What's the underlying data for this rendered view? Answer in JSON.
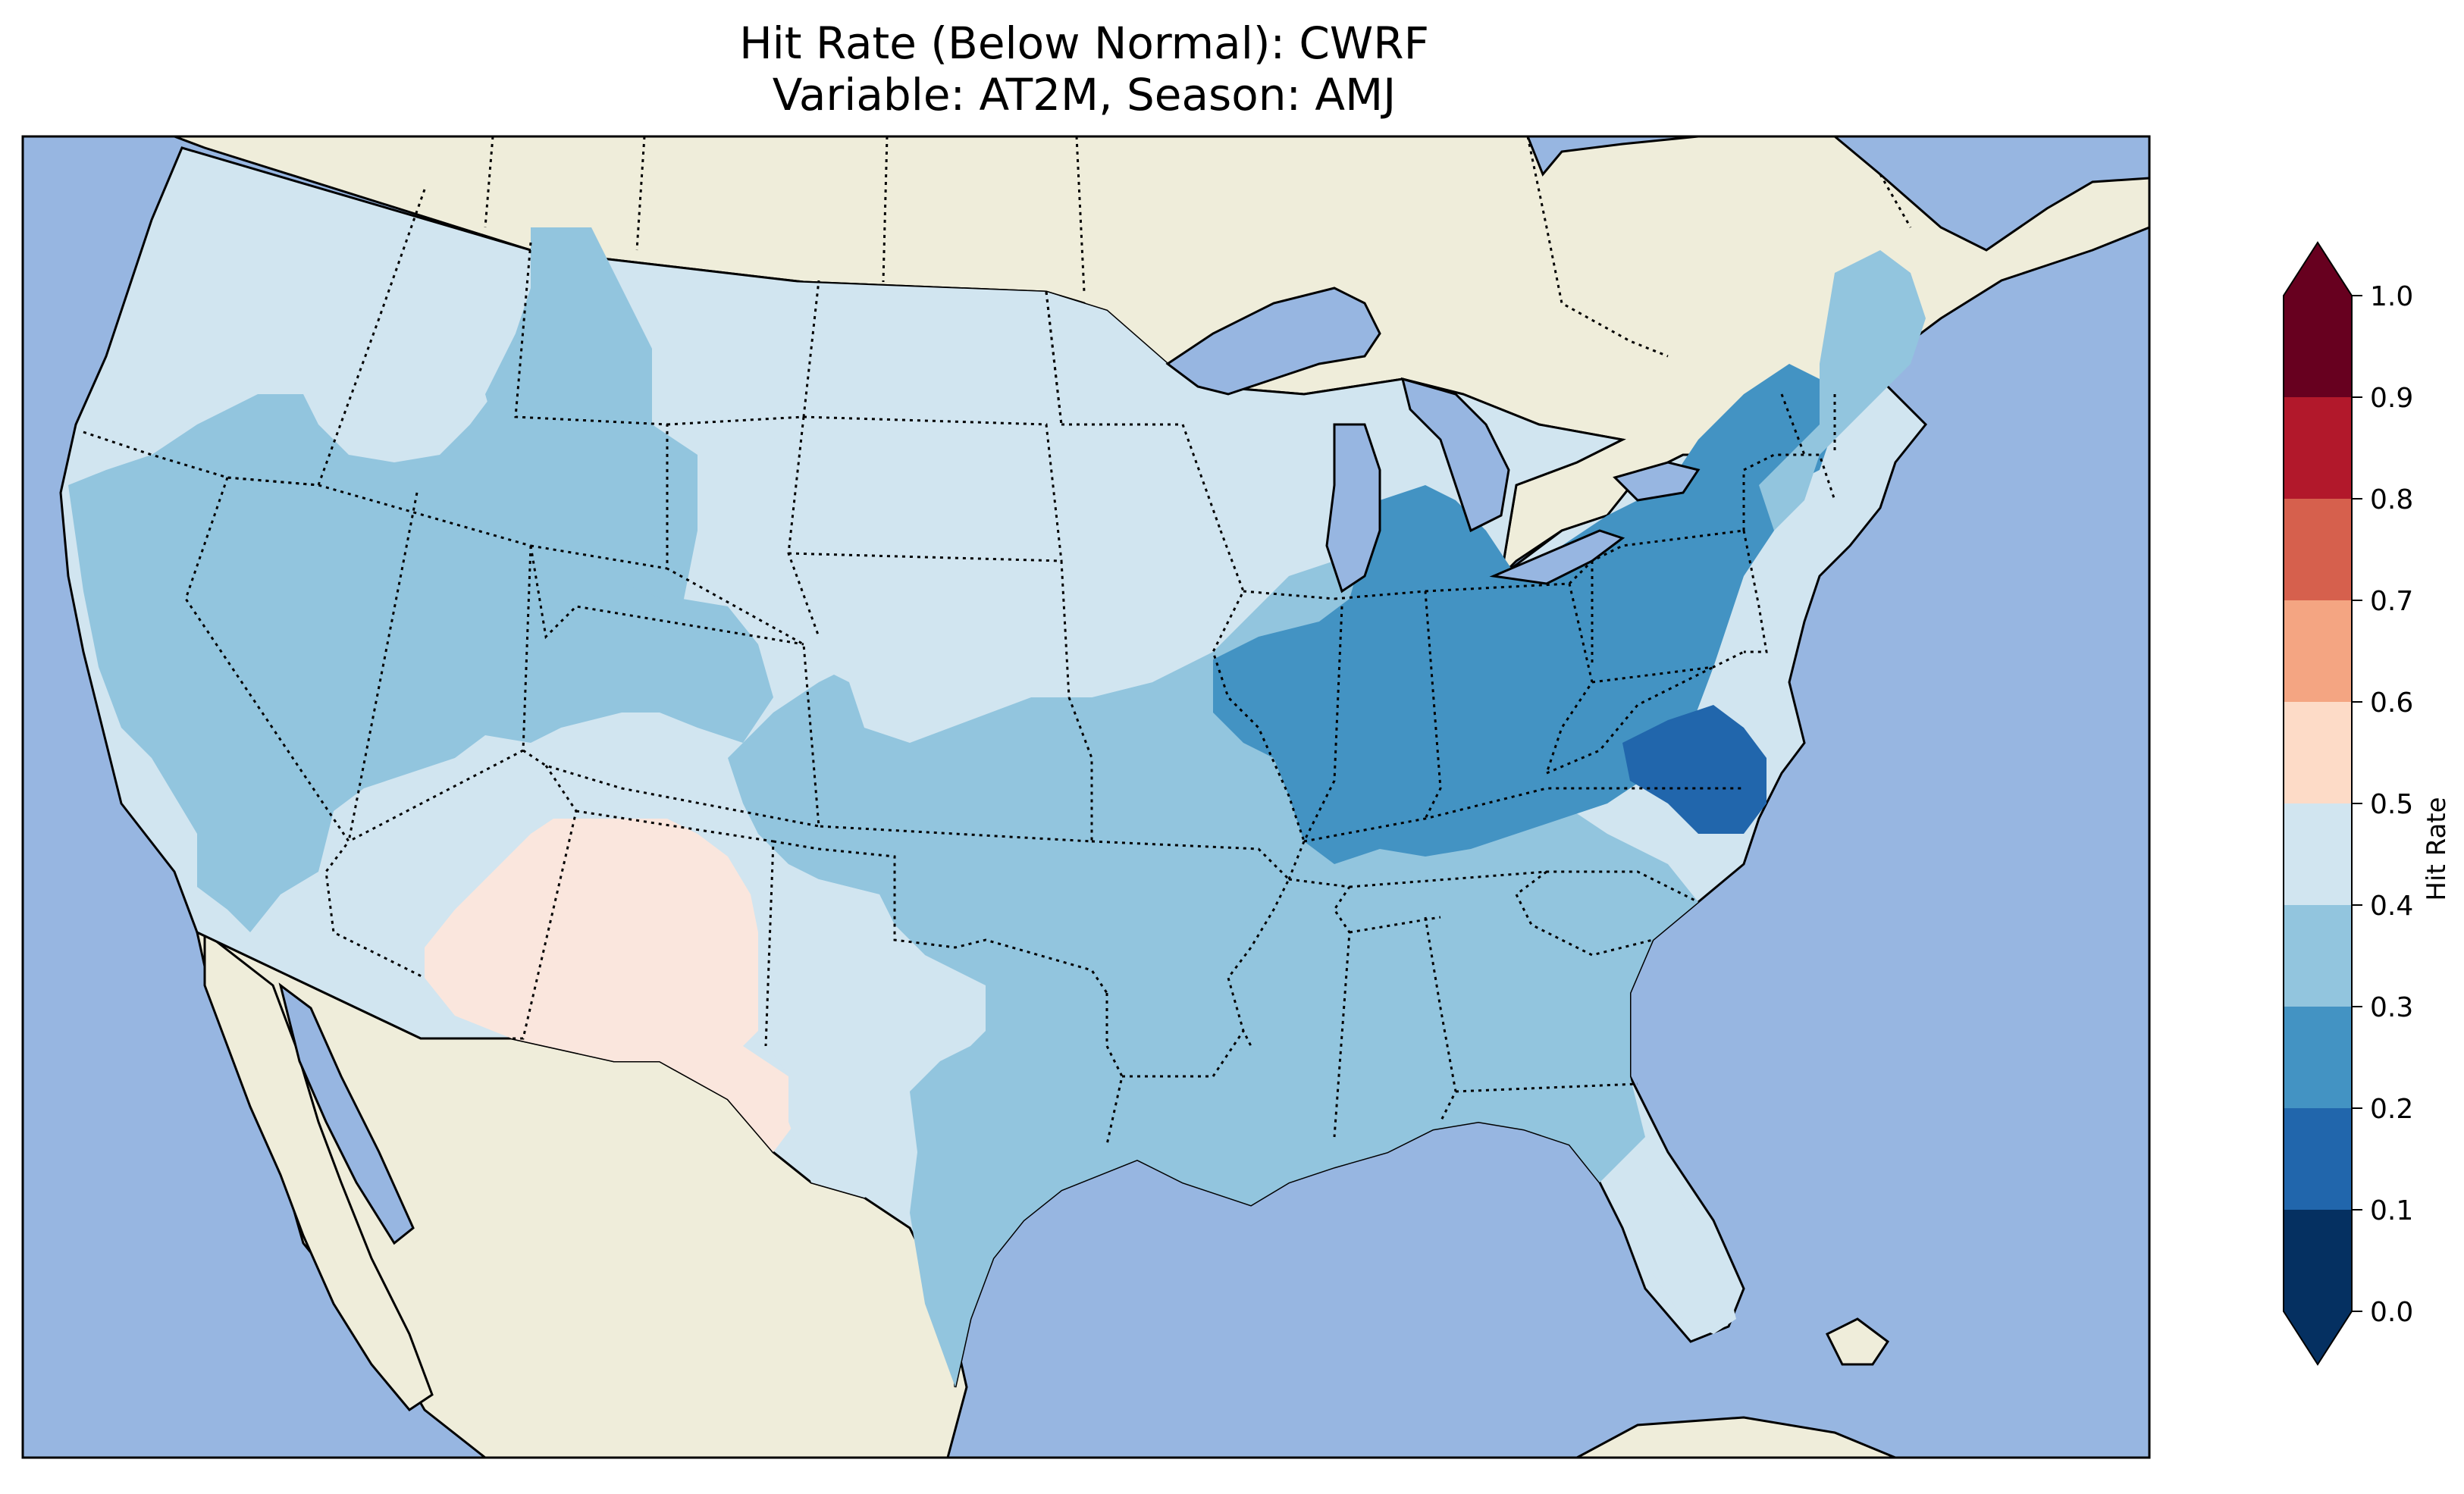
{
  "title": {
    "line1": "Hit Rate (Below Normal): CWRF",
    "line2": "Variable: AT2M, Season: AMJ"
  },
  "map": {
    "projection": "Lambert Conformal (CONUS)",
    "colors": {
      "ocean": "#97b6e1",
      "land": "#efedda",
      "coast": "#000000",
      "border": "#000000"
    }
  },
  "colorbar": {
    "label": "Hit Rate",
    "min": 0.0,
    "max": 1.0,
    "extend": "both",
    "ticks": [
      "0.0",
      "0.1",
      "0.2",
      "0.3",
      "0.4",
      "0.5",
      "0.6",
      "0.7",
      "0.8",
      "0.9",
      "1.0"
    ],
    "colors": [
      "#053061",
      "#2166ac",
      "#4393c3",
      "#92c5de",
      "#d1e5f0",
      "#fddbc7",
      "#f4a582",
      "#d6604d",
      "#b2182b",
      "#67001f"
    ],
    "under_color": "#053061",
    "over_color": "#67001f"
  },
  "regions": [
    {
      "name": "West Coast / Pacific NW",
      "value_bin": "0.4-0.5"
    },
    {
      "name": "Great Basin / Nevada / Utah",
      "value_bin": "0.3-0.4"
    },
    {
      "name": "Montana / Wyoming",
      "value_bin": "0.3-0.4"
    },
    {
      "name": "Arizona / New Mexico",
      "value_bin": "0.5-0.6"
    },
    {
      "name": "Northern Plains",
      "value_bin": "0.4-0.5"
    },
    {
      "name": "Southern Plains / Texas",
      "value_bin": "0.3-0.5"
    },
    {
      "name": "Ohio Valley / Great Lakes",
      "value_bin": "0.2-0.3"
    },
    {
      "name": "Virginia / North Carolina",
      "value_bin": "0.1-0.2"
    },
    {
      "name": "Southeast",
      "value_bin": "0.3-0.4"
    },
    {
      "name": "Florida",
      "value_bin": "0.4-0.5"
    },
    {
      "name": "New England",
      "value_bin": "0.3-0.4"
    }
  ]
}
